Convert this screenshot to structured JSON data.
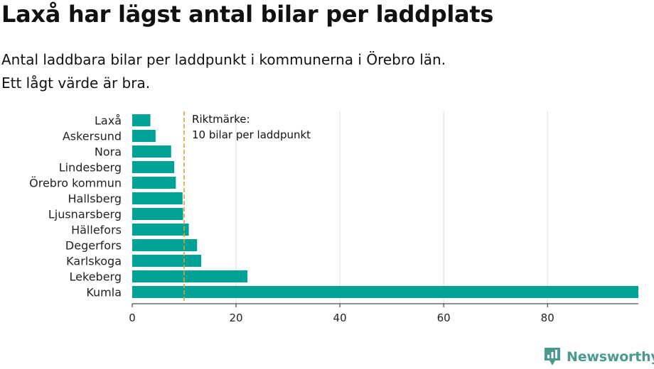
{
  "title": "Laxå har lägst antal bilar per laddplats",
  "subtitle": {
    "line1": "Antal laddbara bilar per laddpunkt i kommunerna i Örebro län.",
    "line2": "Ett lågt värde är bra."
  },
  "brand": {
    "name": "Newsworthy",
    "icon": "newsworthy-logo-icon",
    "color": "#4a9a8d"
  },
  "chart_data": {
    "type": "bar",
    "orientation": "horizontal",
    "categories": [
      "Laxå",
      "Askersund",
      "Nora",
      "Lindesberg",
      "Örebro kommun",
      "Hallsberg",
      "Ljusnarsberg",
      "Hällefors",
      "Degerfors",
      "Karlskoga",
      "Lekeberg",
      "Kumla"
    ],
    "values": [
      3.5,
      4.5,
      7.5,
      8.1,
      8.4,
      9.7,
      9.8,
      10.9,
      12.5,
      13.3,
      22.2,
      97.5
    ],
    "xlim": [
      0,
      97.5
    ],
    "xticks": [
      0,
      20,
      40,
      60,
      80
    ],
    "grid": true,
    "bar_color": "#00a295",
    "reference_line": {
      "value": 10,
      "label_line1": "Riktmärke:",
      "label_line2": "10 bilar per laddpunkt",
      "color": "#e0a035"
    }
  }
}
